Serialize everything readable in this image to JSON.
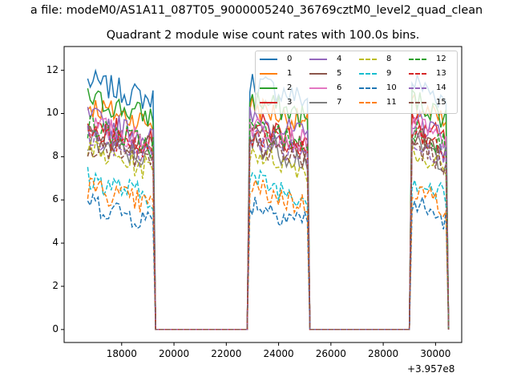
{
  "suptitle": "a file: modeM0/AS1A11_087T05_9000005240_36769cztM0_level2_quad_clean",
  "chart_data": {
    "type": "line",
    "title": "Quadrant 2 module wise count rates with 100.0s bins.",
    "xlabel": "",
    "ylabel": "",
    "x_offset_label": "+3.957e8",
    "xlim": [
      15800,
      31000
    ],
    "ylim": [
      -0.6,
      13.1
    ],
    "xticks": [
      18000,
      20000,
      22000,
      24000,
      26000,
      28000,
      30000
    ],
    "xtick_labels": [
      "18000",
      "20000",
      "22000",
      "24000",
      "26000",
      "28000",
      "30000"
    ],
    "yticks": [
      0,
      2,
      4,
      6,
      8,
      10,
      12
    ],
    "ytick_labels": [
      "0",
      "2",
      "4",
      "6",
      "8",
      "10",
      "12"
    ],
    "grid": false,
    "legend_position": "top-right",
    "segments": [
      [
        16700,
        19200
      ],
      [
        22900,
        25100
      ],
      [
        29100,
        30400
      ]
    ],
    "zero_gaps": [
      [
        19300,
        22800
      ],
      [
        25200,
        29000
      ]
    ],
    "series": [
      {
        "name": "0",
        "color": "#1f77b4",
        "dash": "solid",
        "level": 11.5
      },
      {
        "name": "1",
        "color": "#ff7f0e",
        "dash": "solid",
        "level": 10.4
      },
      {
        "name": "2",
        "color": "#2ca02c",
        "dash": "solid",
        "level": 10.7
      },
      {
        "name": "3",
        "color": "#d62728",
        "dash": "solid",
        "level": 9.6
      },
      {
        "name": "4",
        "color": "#9467bd",
        "dash": "solid",
        "level": 9.8
      },
      {
        "name": "5",
        "color": "#8c564b",
        "dash": "solid",
        "level": 9.2
      },
      {
        "name": "6",
        "color": "#e377c2",
        "dash": "solid",
        "level": 9.5
      },
      {
        "name": "7",
        "color": "#7f7f7f",
        "dash": "solid",
        "level": 8.7
      },
      {
        "name": "8",
        "color": "#bcbd22",
        "dash": "dashed",
        "level": 8.3
      },
      {
        "name": "9",
        "color": "#17becf",
        "dash": "dashed",
        "level": 7.0
      },
      {
        "name": "10",
        "color": "#1f77b4",
        "dash": "dashed",
        "level": 5.9
      },
      {
        "name": "11",
        "color": "#ff7f0e",
        "dash": "dashed",
        "level": 6.6
      },
      {
        "name": "12",
        "color": "#2ca02c",
        "dash": "dashed",
        "level": 9.4
      },
      {
        "name": "13",
        "color": "#d62728",
        "dash": "dashed",
        "level": 9.1
      },
      {
        "name": "14",
        "color": "#9467bd",
        "dash": "dashed",
        "level": 8.9
      },
      {
        "name": "15",
        "color": "#8c564b",
        "dash": "dashed",
        "level": 8.6
      }
    ]
  }
}
